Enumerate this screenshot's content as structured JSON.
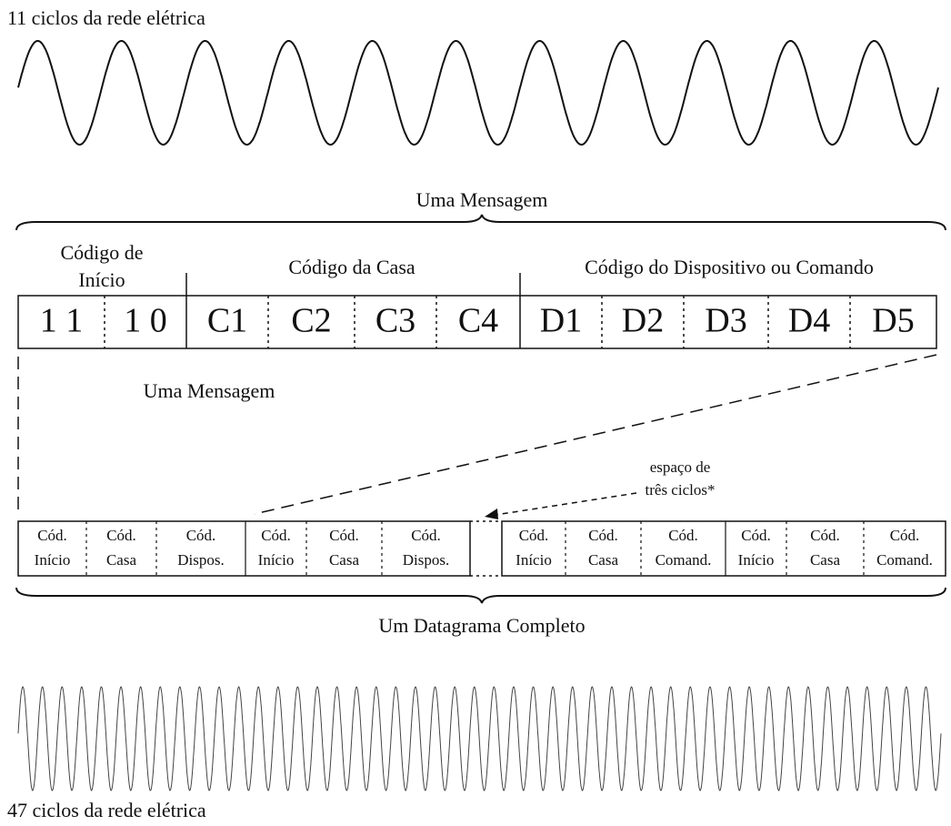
{
  "top_wave_label": "11 ciclos da rede elétrica",
  "message_label": "Uma Mensagem",
  "header_start": [
    "Código de",
    "Início"
  ],
  "header_house": "Código da Casa",
  "header_device": "Código do Dispositivo ou Comando",
  "message_cells": [
    "1 1",
    "1 0",
    "C1",
    "C2",
    "C3",
    "C4",
    "D1",
    "D2",
    "D3",
    "D4",
    "D5"
  ],
  "message_label_2": "Uma Mensagem",
  "gap_note": [
    "espaço de",
    "três ciclos*"
  ],
  "datagram_cells": [
    [
      "Cód.",
      "Início"
    ],
    [
      "Cód.",
      "Casa"
    ],
    [
      "Cód.",
      "Dispos."
    ],
    [
      "Cód.",
      "Início"
    ],
    [
      "Cód.",
      "Casa"
    ],
    [
      "Cód.",
      "Dispos."
    ],
    [
      "Cód.",
      "Início"
    ],
    [
      "Cód.",
      "Casa"
    ],
    [
      "Cód.",
      "Comand."
    ],
    [
      "Cód.",
      "Início"
    ],
    [
      "Cód.",
      "Casa"
    ],
    [
      "Cód.",
      "Comand."
    ]
  ],
  "datagram_label": "Um Datagrama Completo",
  "bottom_wave_label": "47 ciclos da rede elétrica"
}
